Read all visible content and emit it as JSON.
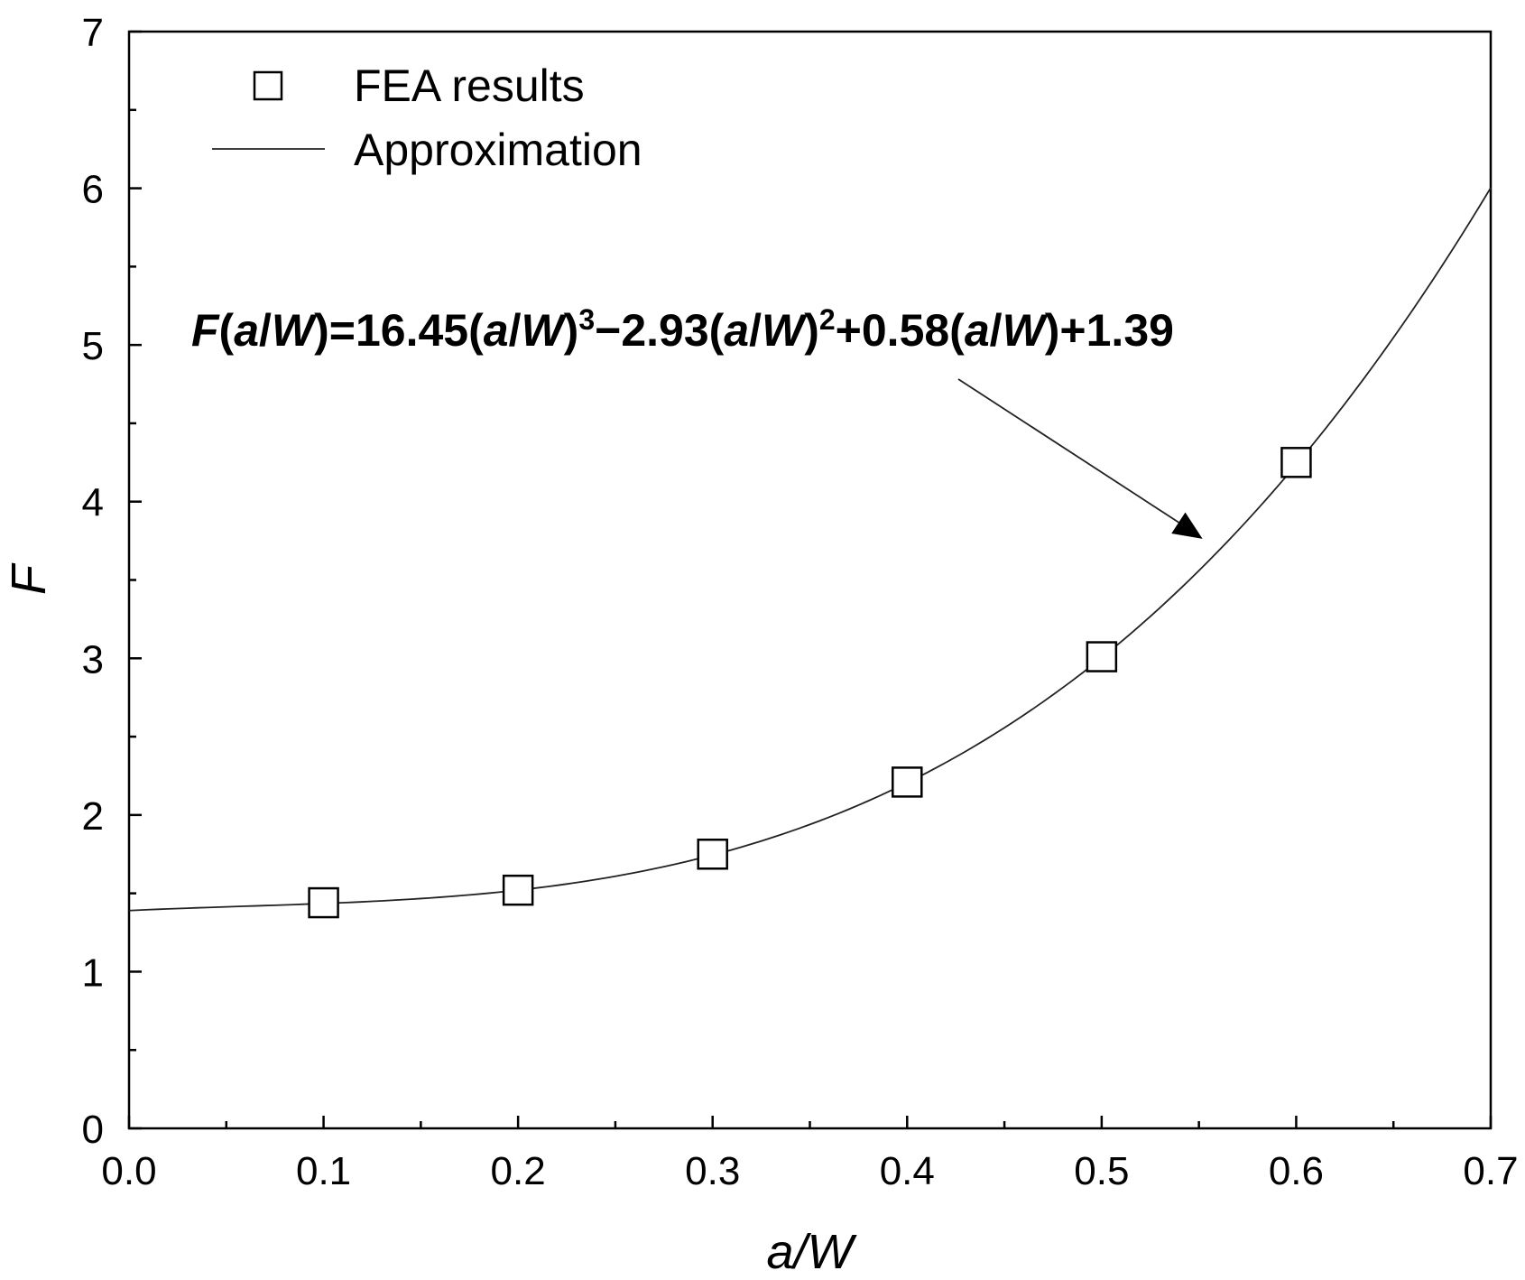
{
  "chart_data": {
    "type": "scatter",
    "title": "",
    "xlabel": "a/W",
    "ylabel": "F",
    "xlim": [
      0.0,
      0.7
    ],
    "ylim": [
      0,
      7
    ],
    "x_ticks": [
      0.0,
      0.1,
      0.2,
      0.3,
      0.4,
      0.5,
      0.6,
      0.7
    ],
    "x_tick_labels": [
      "0.0",
      "0.1",
      "0.2",
      "0.3",
      "0.4",
      "0.5",
      "0.6",
      "0.7"
    ],
    "y_ticks": [
      0,
      1,
      2,
      3,
      4,
      5,
      6,
      7
    ],
    "y_tick_labels": [
      "0",
      "1",
      "2",
      "3",
      "4",
      "5",
      "6",
      "7"
    ],
    "grid": false,
    "legend_position": "top-left",
    "series": [
      {
        "name": "FEA results",
        "kind": "scatter",
        "marker": "open-square",
        "x": [
          0.1,
          0.2,
          0.3,
          0.4,
          0.5,
          0.6
        ],
        "y": [
          1.44,
          1.52,
          1.75,
          2.21,
          3.01,
          4.25
        ]
      },
      {
        "name": "Approximation",
        "kind": "line",
        "function": "cubic",
        "coefficients": {
          "a3": 16.45,
          "a2": -2.93,
          "a1": 0.58,
          "a0": 1.39
        },
        "x_range": [
          0.0,
          0.7
        ]
      }
    ],
    "annotation": {
      "parts": [
        {
          "t": "F",
          "style": "bi"
        },
        {
          "t": "(",
          "style": "b"
        },
        {
          "t": "a",
          "style": "bi"
        },
        {
          "t": "/",
          "style": "b"
        },
        {
          "t": "W",
          "style": "bi"
        },
        {
          "t": ")=16.45(",
          "style": "b"
        },
        {
          "t": "a",
          "style": "bi"
        },
        {
          "t": "/",
          "style": "b"
        },
        {
          "t": "W",
          "style": "bi"
        },
        {
          "t": ")",
          "style": "b"
        },
        {
          "t": "3",
          "style": "sup"
        },
        {
          "t": "−2.93(",
          "style": "b"
        },
        {
          "t": "a",
          "style": "bi"
        },
        {
          "t": "/",
          "style": "b"
        },
        {
          "t": "W",
          "style": "bi"
        },
        {
          "t": ")",
          "style": "b"
        },
        {
          "t": "2",
          "style": "sup"
        },
        {
          "t": "+0.58(",
          "style": "b"
        },
        {
          "t": "a",
          "style": "bi"
        },
        {
          "t": "/",
          "style": "b"
        },
        {
          "t": "W",
          "style": "bi"
        },
        {
          "t": ")+1.39",
          "style": "b"
        }
      ],
      "arrow_target": {
        "x": 0.55,
        "y": 3.74
      }
    }
  },
  "colors": {
    "axis": "#000000",
    "marker": "#000000",
    "line": "#222222",
    "background": "#ffffff"
  }
}
